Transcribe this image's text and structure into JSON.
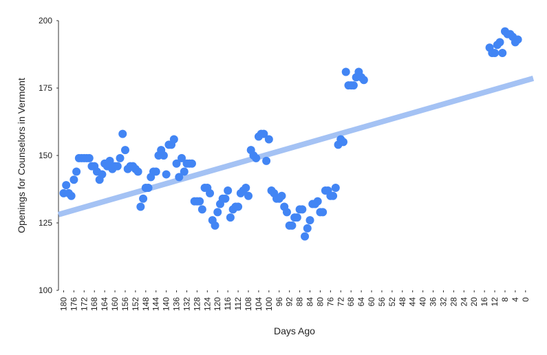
{
  "chart_data": {
    "type": "scatter",
    "x_label": "Days Ago",
    "y_label": "Openings for Counselors in Vermont",
    "x": [
      180,
      179,
      178,
      177,
      176,
      175,
      174,
      173,
      172,
      171,
      170,
      169,
      168,
      167,
      166,
      165,
      164,
      163,
      162,
      161,
      160,
      159,
      158,
      157,
      156,
      155,
      154,
      153,
      152,
      151,
      150,
      149,
      148,
      147,
      146,
      145,
      144,
      143,
      142,
      141,
      140,
      139,
      138,
      137,
      136,
      135,
      134,
      133,
      132,
      131,
      130,
      129,
      128,
      127,
      126,
      125,
      124,
      123,
      122,
      121,
      120,
      119,
      118,
      117,
      116,
      115,
      114,
      113,
      112,
      111,
      110,
      109,
      108,
      107,
      106,
      105,
      104,
      103,
      102,
      101,
      100,
      99,
      98,
      97,
      96,
      95,
      94,
      93,
      92,
      91,
      90,
      89,
      88,
      87,
      86,
      85,
      84,
      83,
      82,
      81,
      80,
      79,
      78,
      77,
      76,
      75,
      74,
      73,
      72,
      71,
      70,
      69,
      68,
      67,
      66,
      65,
      64,
      63,
      14,
      13,
      12,
      11,
      10,
      9,
      8,
      7,
      6,
      5,
      4,
      3
    ],
    "values": [
      136,
      139,
      136,
      135,
      141,
      144,
      149,
      149,
      149,
      149,
      149,
      146,
      146,
      144,
      141,
      143,
      147,
      146,
      148,
      145,
      146,
      146,
      149,
      158,
      152,
      145,
      146,
      146,
      145,
      144,
      131,
      134,
      138,
      138,
      142,
      144,
      144,
      150,
      152,
      150,
      143,
      154,
      154,
      156,
      147,
      142,
      149,
      144,
      147,
      147,
      147,
      133,
      133,
      133,
      130,
      138,
      138,
      136,
      126,
      124,
      129,
      132,
      134,
      134,
      137,
      127,
      130,
      131,
      131,
      136,
      137,
      138,
      135,
      152,
      150,
      149,
      157,
      158,
      158,
      148,
      156,
      137,
      136,
      134,
      134,
      135,
      131,
      129,
      124,
      124,
      127,
      127,
      130,
      130,
      120,
      123,
      126,
      132,
      132,
      133,
      129,
      129,
      137,
      137,
      135,
      135,
      138,
      154,
      156,
      155,
      181,
      176,
      176,
      176,
      179,
      181,
      179,
      178,
      190,
      188,
      188,
      191,
      192,
      188,
      196,
      195,
      195,
      194,
      192,
      193
    ],
    "color": "#4285f4",
    "trendline": {
      "x": [
        182,
        -3
      ],
      "values": [
        128.1,
        178.6
      ],
      "color": "#a4c2f4"
    },
    "xlim": [
      182,
      -3
    ],
    "ylim": [
      100,
      200
    ],
    "xticks": [
      180,
      176,
      172,
      168,
      164,
      160,
      156,
      152,
      148,
      144,
      140,
      136,
      132,
      128,
      124,
      120,
      116,
      112,
      108,
      104,
      100,
      96,
      92,
      88,
      84,
      80,
      76,
      72,
      68,
      64,
      60,
      56,
      52,
      48,
      44,
      40,
      36,
      32,
      28,
      24,
      20,
      16,
      12,
      8,
      4,
      0
    ],
    "yticks": [
      100,
      125,
      150,
      175,
      200
    ]
  }
}
